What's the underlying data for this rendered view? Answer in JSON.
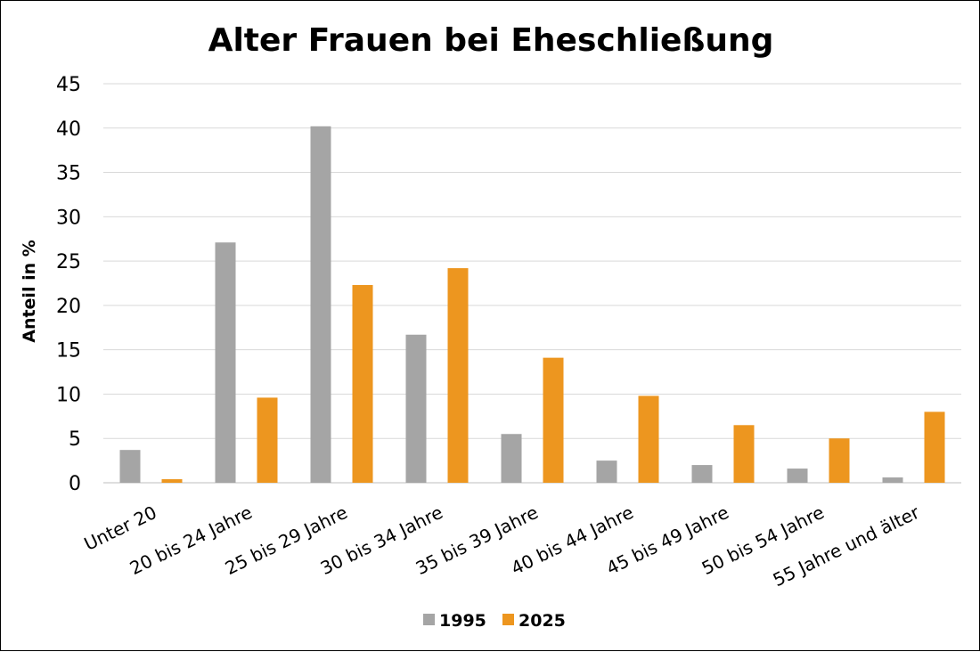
{
  "chart_data": {
    "type": "bar",
    "title": "Alter Frauen bei Eheschließung",
    "ylabel": "Anteil in %",
    "xlabel": "",
    "ylim": [
      0,
      45
    ],
    "yticks": [
      0,
      5,
      10,
      15,
      20,
      25,
      30,
      35,
      40,
      45
    ],
    "grid": true,
    "legend_position": "bottom",
    "categories": [
      "Unter 20",
      "20 bis 24 Jahre",
      "25 bis 29 Jahre",
      "30 bis 34 Jahre",
      "35 bis 39 Jahre",
      "40 bis 44 Jahre",
      "45 bis 49 Jahre",
      "50 bis 54 Jahre",
      "55 Jahre und älter"
    ],
    "series": [
      {
        "name": "1995",
        "color": "#a5a5a5",
        "values": [
          3.7,
          27.1,
          40.2,
          16.7,
          5.5,
          2.5,
          2.0,
          1.6,
          0.6
        ]
      },
      {
        "name": "2025",
        "color": "#ed961f",
        "values": [
          0.4,
          9.6,
          22.3,
          24.2,
          14.1,
          9.8,
          6.5,
          5.0,
          8.0
        ]
      }
    ]
  }
}
